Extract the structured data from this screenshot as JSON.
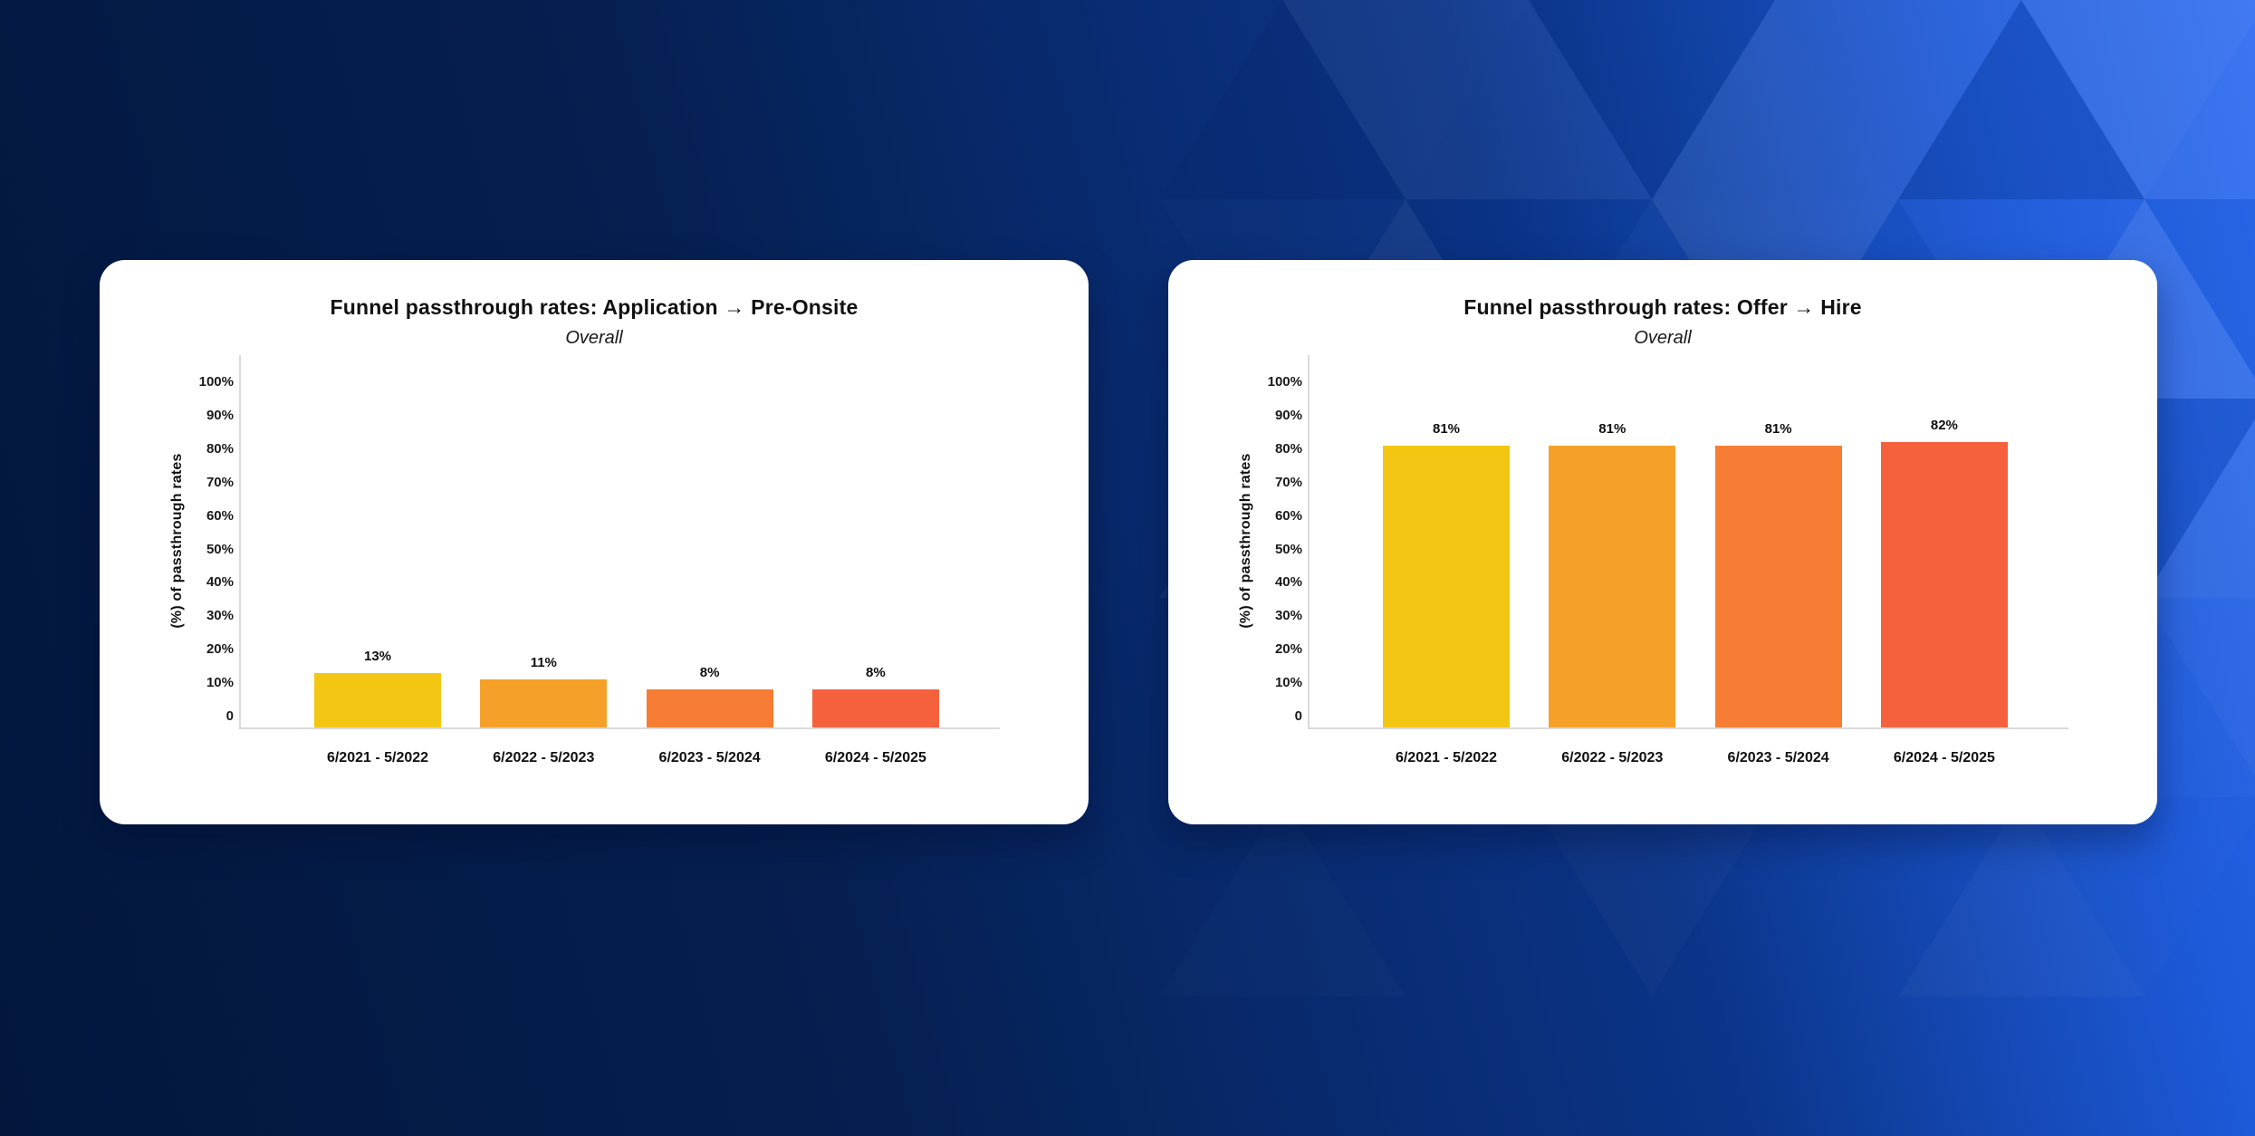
{
  "theme": {
    "background_gradient": [
      "#03173D",
      "#051F50",
      "#0B3488",
      "#1D5AD9",
      "#2C6BF1"
    ],
    "pattern_light": "#FFFFFF",
    "pattern_dark": "#02123A",
    "card_background": "#FFFFFF",
    "axis_line_color": "#DADADA",
    "text_color": "#111111"
  },
  "chart_data": [
    {
      "type": "bar",
      "title": "Funnel passthrough rates: Application → Pre-Onsite",
      "subtitle": "Overall",
      "ylabel": "(%) of passthrough rates",
      "ylim": [
        0,
        100
      ],
      "yticks": [
        "0",
        "10%",
        "20%",
        "30%",
        "40%",
        "50%",
        "60%",
        "70%",
        "80%",
        "90%",
        "100%"
      ],
      "categories": [
        "6/2021 - 5/2022",
        "6/2022 - 5/2023",
        "6/2023 - 5/2024",
        "6/2024 - 5/2025"
      ],
      "values": [
        13,
        11,
        8,
        8
      ],
      "value_labels": [
        "13%",
        "11%",
        "8%",
        "8%"
      ],
      "bar_colors": [
        "#F3C613",
        "#F5A129",
        "#F67D33",
        "#F6613D"
      ],
      "grid": false,
      "legend": null
    },
    {
      "type": "bar",
      "title": "Funnel passthrough rates: Offer → Hire",
      "subtitle": "Overall",
      "ylabel": "(%) of passthrough rates",
      "ylim": [
        0,
        100
      ],
      "yticks": [
        "0",
        "10%",
        "20%",
        "30%",
        "40%",
        "50%",
        "60%",
        "70%",
        "80%",
        "90%",
        "100%"
      ],
      "categories": [
        "6/2021 - 5/2022",
        "6/2022 - 5/2023",
        "6/2023 - 5/2024",
        "6/2024 - 5/2025"
      ],
      "values": [
        81,
        81,
        81,
        82
      ],
      "value_labels": [
        "81%",
        "81%",
        "81%",
        "82%"
      ],
      "bar_colors": [
        "#F3C613",
        "#F5A129",
        "#F67D33",
        "#F6613D"
      ],
      "grid": false,
      "legend": null
    }
  ]
}
